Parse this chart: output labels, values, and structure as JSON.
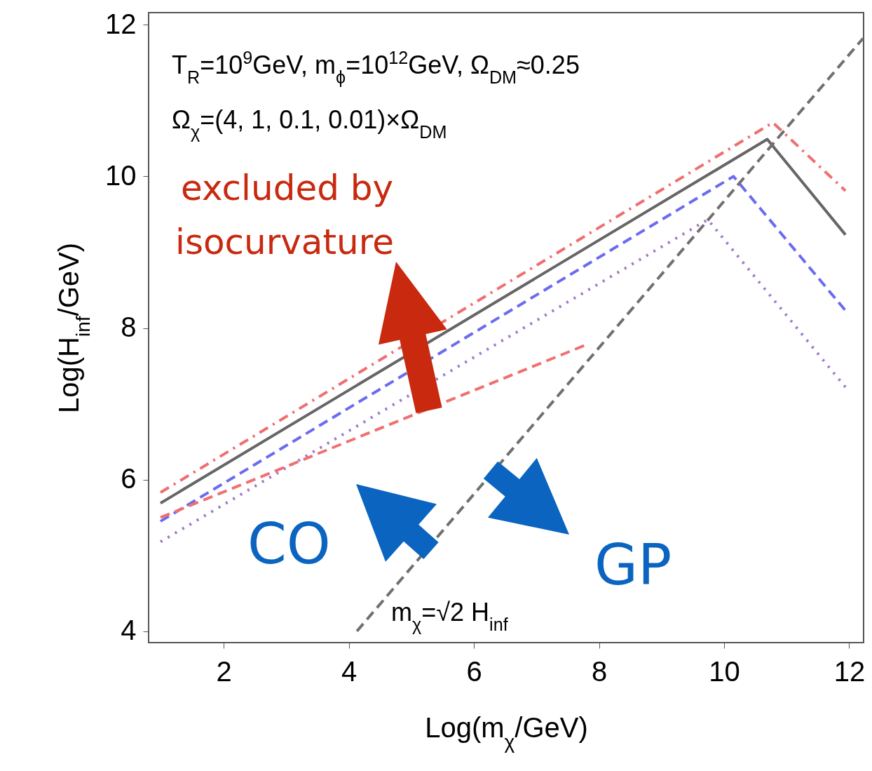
{
  "chart_data": {
    "type": "line",
    "xlabel": "Log(m$_{χ}$/GeV)",
    "ylabel": "Log(H$_{inf}$/GeV)",
    "xlim": [
      0.8,
      12.23
    ],
    "ylim": [
      3.85,
      12.16
    ],
    "xticks": [
      2,
      4,
      6,
      8,
      10,
      12
    ],
    "yticks": [
      4,
      6,
      8,
      10,
      12
    ],
    "grid": false,
    "series": [
      {
        "color": "#f06e6e",
        "line_style": "dashdot",
        "x": [
          0.99,
          10.78,
          11.94
        ],
        "values": [
          5.83,
          10.71,
          9.81
        ]
      },
      {
        "color": "#666666",
        "line_style": "solid",
        "x": [
          0.99,
          10.69,
          11.94
        ],
        "values": [
          5.69,
          10.49,
          9.23
        ]
      },
      {
        "color": "#6b6bf0",
        "line_style": "dashed",
        "x": [
          0.99,
          10.15,
          11.94
        ],
        "values": [
          5.45,
          10.0,
          8.23
        ]
      },
      {
        "color": "#a078c8",
        "line_style": "dotted",
        "x": [
          0.99,
          9.74,
          11.94
        ],
        "values": [
          5.18,
          9.43,
          7.22
        ]
      },
      {
        "color": "#f07070",
        "line_style": "dashed",
        "x": [
          0.99,
          7.77
        ],
        "values": [
          5.5,
          7.77
        ]
      },
      {
        "color": "#707070",
        "line_style": "dashed",
        "x": [
          4.13,
          12.22
        ],
        "values": [
          4.0,
          11.82
        ]
      }
    ],
    "annotations": [
      "T$_{R}$=10$^{9}$GeV, m$_{ϕ}$=10$^{12}$GeV, Ω$_{DM}$≈0.25",
      "Ω$_{χ}$=(4, 1, 0.1, 0.01)×Ω$_{DM}$",
      "excluded by",
      "isocurvature",
      "CO",
      "GP",
      "m$_{χ}$=√2 H$_{inf}$"
    ]
  }
}
